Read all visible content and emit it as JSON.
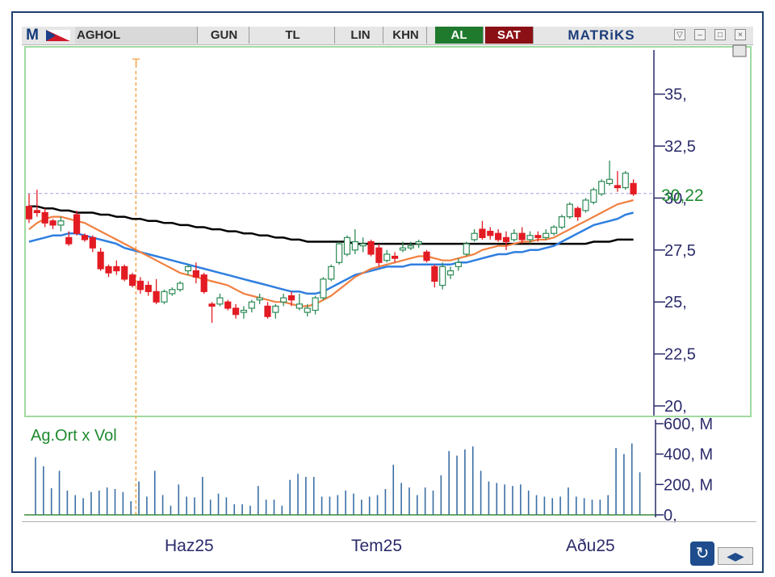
{
  "toolbar": {
    "logo_letter": "M",
    "symbol": "AGHOL",
    "period": "GUN",
    "currency": "TL",
    "scale": "LIN",
    "khn": "KHN",
    "buy": "AL",
    "sell": "SAT",
    "brand": "MATRiKS",
    "window_buttons": [
      "▽",
      "–",
      "□",
      "×"
    ]
  },
  "colors": {
    "up": "#2e8b57",
    "down": "#e31b23",
    "ma_short": "#f08040",
    "ma_mid": "#2f7fe0",
    "ma_long": "#000000",
    "volume": "#3a6ea5",
    "axis_text": "#2b2b6b",
    "last_price": "#1f8a2f"
  },
  "chart_data": [
    {
      "type": "candlestick",
      "ylim": [
        20,
        36.5
      ],
      "yticks": [
        "35,",
        "32,5",
        "30,",
        "27,5",
        "25,",
        "22,5",
        "20,"
      ],
      "ytick_values": [
        35,
        32.5,
        30,
        27.5,
        25,
        22.5,
        20
      ],
      "last_price_label": "30,22",
      "last_price": 30.22,
      "marker_label": "T",
      "marker_index": 11,
      "x_labels": [
        "Haz25",
        "Tem25",
        "Aðu25"
      ],
      "x_label_index": [
        14,
        33,
        55
      ],
      "candles": [
        [
          29.6,
          30.2,
          28.8,
          29.0
        ],
        [
          29.4,
          30.4,
          29.1,
          29.3
        ],
        [
          29.3,
          29.5,
          28.6,
          28.8
        ],
        [
          28.9,
          29.0,
          28.5,
          28.7
        ],
        [
          28.7,
          29.1,
          28.4,
          28.9
        ],
        [
          28.1,
          28.4,
          27.7,
          27.8
        ],
        [
          29.2,
          29.4,
          28.2,
          28.3
        ],
        [
          28.2,
          28.3,
          27.9,
          28.0
        ],
        [
          28.1,
          28.2,
          27.4,
          27.6
        ],
        [
          27.4,
          27.6,
          26.5,
          26.6
        ],
        [
          26.7,
          26.8,
          26.2,
          26.4
        ],
        [
          26.7,
          27.0,
          26.3,
          26.5
        ],
        [
          26.7,
          26.8,
          26.0,
          26.1
        ],
        [
          26.3,
          26.4,
          25.7,
          25.8
        ],
        [
          26.0,
          26.2,
          25.4,
          25.6
        ],
        [
          25.8,
          26.0,
          25.3,
          25.5
        ],
        [
          25.5,
          26.1,
          24.9,
          25.0
        ],
        [
          25.0,
          25.6,
          24.9,
          25.5
        ],
        [
          25.4,
          25.7,
          25.3,
          25.6
        ],
        [
          25.6,
          26.0,
          25.5,
          25.9
        ],
        [
          26.5,
          26.8,
          26.3,
          26.7
        ],
        [
          26.5,
          26.9,
          25.9,
          26.2
        ],
        [
          26.3,
          26.4,
          25.4,
          25.5
        ],
        [
          24.9,
          25.0,
          24.0,
          24.8
        ],
        [
          24.9,
          25.4,
          24.8,
          25.2
        ],
        [
          25.0,
          25.1,
          24.6,
          24.7
        ],
        [
          24.7,
          24.9,
          24.2,
          24.4
        ],
        [
          24.5,
          24.8,
          24.2,
          24.6
        ],
        [
          24.7,
          25.1,
          24.5,
          25.0
        ],
        [
          25.1,
          25.4,
          24.9,
          25.2
        ],
        [
          24.8,
          25.0,
          24.2,
          24.3
        ],
        [
          24.5,
          24.9,
          24.2,
          24.8
        ],
        [
          25.0,
          25.4,
          24.8,
          25.2
        ],
        [
          25.3,
          25.5,
          24.8,
          25.1
        ],
        [
          24.7,
          25.4,
          24.6,
          24.9
        ],
        [
          24.5,
          24.9,
          24.3,
          24.7
        ],
        [
          24.6,
          25.3,
          24.4,
          25.2
        ],
        [
          25.2,
          26.2,
          25.1,
          26.1
        ],
        [
          26.1,
          26.8,
          26.0,
          26.7
        ],
        [
          26.9,
          27.9,
          26.8,
          27.8
        ],
        [
          27.3,
          28.2,
          27.2,
          28.1
        ],
        [
          27.5,
          28.5,
          27.3,
          27.9
        ],
        [
          27.7,
          28.1,
          27.4,
          27.8
        ],
        [
          27.9,
          28.0,
          27.2,
          27.3
        ],
        [
          27.6,
          27.8,
          26.7,
          26.9
        ],
        [
          27.0,
          27.5,
          26.9,
          27.3
        ],
        [
          27.2,
          27.4,
          26.9,
          27.1
        ],
        [
          27.5,
          27.9,
          27.4,
          27.6
        ],
        [
          27.6,
          27.9,
          27.5,
          27.7
        ],
        [
          27.8,
          28.0,
          27.6,
          27.9
        ],
        [
          27.4,
          27.5,
          26.9,
          27.0
        ],
        [
          26.7,
          26.8,
          25.7,
          26.0
        ],
        [
          25.8,
          26.9,
          25.6,
          26.7
        ],
        [
          26.3,
          26.7,
          26.1,
          26.5
        ],
        [
          26.7,
          27.1,
          26.5,
          26.9
        ],
        [
          27.3,
          27.9,
          27.2,
          27.8
        ],
        [
          28.0,
          28.5,
          27.9,
          28.3
        ],
        [
          28.5,
          28.9,
          28.0,
          28.1
        ],
        [
          28.4,
          28.6,
          28.0,
          28.2
        ],
        [
          28.3,
          28.5,
          27.9,
          28.0
        ],
        [
          28.1,
          28.4,
          27.5,
          27.9
        ],
        [
          28.0,
          28.5,
          27.9,
          28.3
        ],
        [
          28.3,
          28.6,
          27.8,
          28.0
        ],
        [
          28.0,
          28.4,
          27.8,
          28.2
        ],
        [
          28.2,
          28.4,
          27.9,
          28.1
        ],
        [
          28.1,
          28.5,
          28.0,
          28.3
        ],
        [
          28.3,
          28.7,
          28.2,
          28.6
        ],
        [
          28.6,
          29.2,
          28.5,
          29.1
        ],
        [
          29.1,
          29.8,
          29.0,
          29.7
        ],
        [
          29.5,
          29.6,
          28.9,
          29.1
        ],
        [
          29.4,
          30.0,
          29.3,
          29.9
        ],
        [
          29.8,
          30.5,
          29.7,
          30.4
        ],
        [
          30.2,
          30.9,
          30.1,
          30.8
        ],
        [
          30.7,
          31.8,
          30.6,
          30.9
        ],
        [
          30.6,
          31.3,
          30.3,
          30.5
        ],
        [
          30.5,
          31.3,
          30.4,
          31.2
        ],
        [
          30.7,
          30.9,
          30.1,
          30.2
        ]
      ],
      "ma_short": [
        28.5,
        28.8,
        29.0,
        29.1,
        29.1,
        29.0,
        28.9,
        28.8,
        28.6,
        28.4,
        28.2,
        28.0,
        27.8,
        27.6,
        27.4,
        27.2,
        27.0,
        26.8,
        26.6,
        26.4,
        26.3,
        26.2,
        26.1,
        26.0,
        25.9,
        25.8,
        25.6,
        25.4,
        25.3,
        25.2,
        25.1,
        25.0,
        25.0,
        24.9,
        24.8,
        24.8,
        24.9,
        25.1,
        25.3,
        25.6,
        25.9,
        26.2,
        26.4,
        26.6,
        26.7,
        26.8,
        26.9,
        27.0,
        27.1,
        27.2,
        27.2,
        27.1,
        27.0,
        27.0,
        27.1,
        27.2,
        27.3,
        27.5,
        27.6,
        27.7,
        27.7,
        27.8,
        27.9,
        27.9,
        28.0,
        28.0,
        28.1,
        28.3,
        28.5,
        28.7,
        28.9,
        29.1,
        29.3,
        29.5,
        29.7,
        29.8,
        29.9
      ],
      "ma_mid": [
        27.9,
        28.0,
        28.1,
        28.2,
        28.2,
        28.3,
        28.3,
        28.2,
        28.1,
        28.0,
        27.9,
        27.8,
        27.6,
        27.5,
        27.4,
        27.3,
        27.2,
        27.1,
        27.0,
        26.9,
        26.8,
        26.7,
        26.6,
        26.5,
        26.4,
        26.3,
        26.2,
        26.1,
        26.0,
        25.9,
        25.8,
        25.7,
        25.6,
        25.5,
        25.5,
        25.4,
        25.4,
        25.5,
        25.7,
        25.9,
        26.1,
        26.3,
        26.4,
        26.5,
        26.6,
        26.7,
        26.7,
        26.7,
        26.8,
        26.8,
        26.8,
        26.8,
        26.8,
        26.8,
        26.9,
        26.9,
        27.0,
        27.1,
        27.2,
        27.3,
        27.3,
        27.4,
        27.4,
        27.5,
        27.5,
        27.6,
        27.7,
        27.9,
        28.1,
        28.3,
        28.5,
        28.7,
        28.8,
        28.9,
        29.0,
        29.2,
        29.3
      ],
      "ma_long": [
        29.6,
        29.6,
        29.5,
        29.5,
        29.4,
        29.4,
        29.3,
        29.3,
        29.3,
        29.2,
        29.2,
        29.1,
        29.1,
        29.0,
        29.0,
        28.9,
        28.9,
        28.8,
        28.8,
        28.7,
        28.7,
        28.6,
        28.6,
        28.5,
        28.5,
        28.4,
        28.4,
        28.3,
        28.3,
        28.2,
        28.2,
        28.1,
        28.1,
        28.0,
        28.0,
        27.9,
        27.9,
        27.9,
        27.9,
        27.9,
        27.9,
        27.8,
        27.8,
        27.8,
        27.8,
        27.8,
        27.8,
        27.8,
        27.8,
        27.8,
        27.8,
        27.8,
        27.8,
        27.8,
        27.8,
        27.8,
        27.8,
        27.8,
        27.8,
        27.8,
        27.8,
        27.8,
        27.8,
        27.8,
        27.8,
        27.8,
        27.8,
        27.8,
        27.8,
        27.8,
        27.8,
        27.9,
        27.9,
        27.9,
        28.0,
        28.0,
        28.0
      ]
    },
    {
      "type": "bar",
      "title": "Ag.Ort x Vol",
      "ylim": [
        0,
        600
      ],
      "yticks": [
        "600, M",
        "400, M",
        "200, M",
        "0,"
      ],
      "ytick_values": [
        600,
        400,
        200,
        0
      ],
      "values": [
        380,
        320,
        175,
        290,
        160,
        130,
        110,
        150,
        160,
        180,
        170,
        150,
        90,
        220,
        120,
        290,
        130,
        60,
        200,
        120,
        115,
        250,
        100,
        140,
        115,
        70,
        70,
        60,
        190,
        100,
        100,
        60,
        230,
        270,
        250,
        250,
        120,
        120,
        130,
        160,
        140,
        100,
        120,
        130,
        170,
        330,
        210,
        180,
        130,
        180,
        160,
        260,
        420,
        390,
        430,
        450,
        290,
        220,
        210,
        200,
        190,
        200,
        160,
        130,
        120,
        110,
        120,
        180,
        120,
        110,
        100,
        100,
        130,
        440,
        400,
        470,
        280
      ]
    }
  ],
  "xaxis": {
    "labels": [
      "Haz25",
      "Tem25",
      "Aðu25"
    ]
  },
  "nav": {
    "sync_icon": "↻",
    "arrows": "◀▶"
  }
}
